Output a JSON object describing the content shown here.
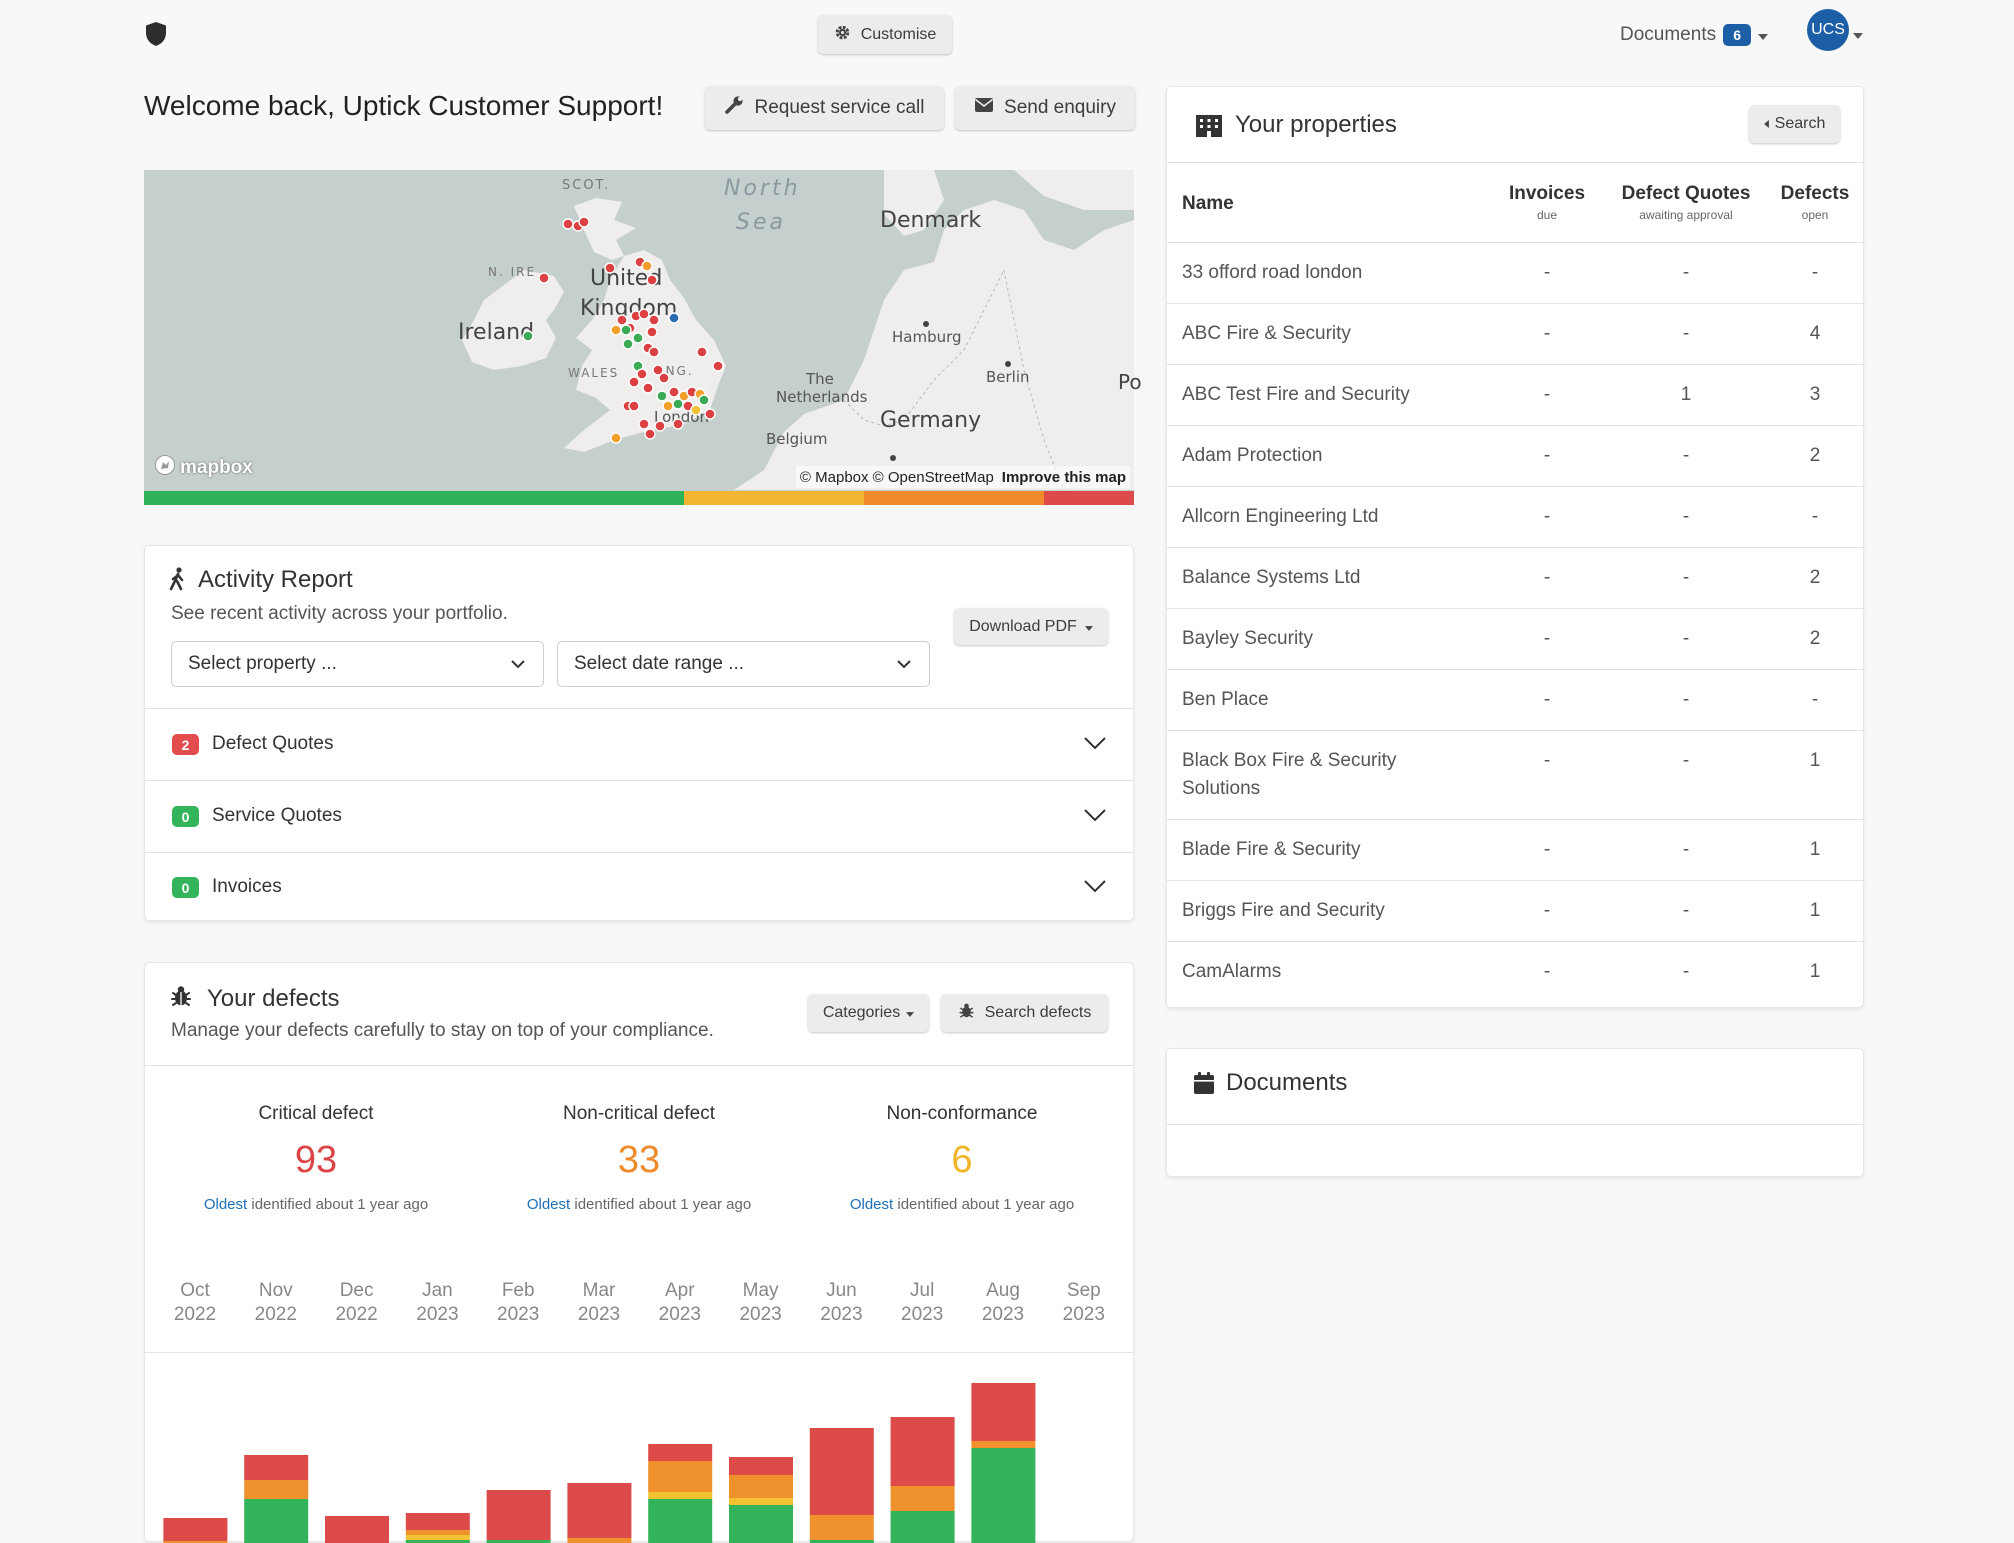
{
  "header": {
    "customise_label": "Customise",
    "documents_label": "Documents",
    "documents_count": "6",
    "avatar_initials": "UCS"
  },
  "welcome": {
    "title": "Welcome back, Uptick Customer Support!",
    "request_service_label": "Request service call",
    "send_enquiry_label": "Send enquiry"
  },
  "map": {
    "labels": {
      "scot": "SCOT.",
      "north": "North",
      "sea": "Sea",
      "denmark": "Denmark",
      "n_ire": "N. IRE",
      "united": "United",
      "kingdom": "Kingdom",
      "ireland": "Ireland",
      "hamburg": "Hamburg",
      "wales": "WALES",
      "eng": "ENG.",
      "the": "The",
      "netherlands": "Netherlands",
      "berlin": "Berlin",
      "po": "Po",
      "germany": "Germany",
      "london": "London",
      "belgium": "Belgium"
    },
    "logo": "mapbox",
    "attribution": "© Mapbox © OpenStreetMap",
    "improve_link": "Improve this map",
    "status_bar": [
      {
        "fraction": 0.545,
        "color": "#2fb35a"
      },
      {
        "fraction": 0.182,
        "color": "#f2b632"
      },
      {
        "fraction": 0.182,
        "color": "#f08a2c"
      },
      {
        "fraction": 0.091,
        "color": "#dc4a4a"
      }
    ]
  },
  "activity": {
    "title": "Activity Report",
    "subtitle": "See recent activity across your portfolio.",
    "download_label": "Download PDF",
    "property_select": "Select property ...",
    "date_select": "Select date range ...",
    "sections": [
      {
        "count": "2",
        "label": "Defect Quotes",
        "color": "#e24c4c"
      },
      {
        "count": "0",
        "label": "Service Quotes",
        "color": "#33b35a"
      },
      {
        "count": "0",
        "label": "Invoices",
        "color": "#33b35a"
      }
    ]
  },
  "defects": {
    "title": "Your defects",
    "subtitle": "Manage your defects carefully to stay on top of your compliance.",
    "categories_label": "Categories",
    "search_label": "Search defects",
    "stats": [
      {
        "label": "Critical defect",
        "value": "93",
        "color": "#dc4545",
        "oldest": "Oldest",
        "ago": "identified about 1 year ago"
      },
      {
        "label": "Non-critical defect",
        "value": "33",
        "color": "#ef8a2b",
        "oldest": "Oldest",
        "ago": "identified about 1 year ago"
      },
      {
        "label": "Non-conformance",
        "value": "6",
        "color": "#f0b429",
        "oldest": "Oldest",
        "ago": "identified about 1 year ago"
      }
    ]
  },
  "chart_data": {
    "type": "bar",
    "stacked": true,
    "categories": [
      [
        "Oct",
        "2022"
      ],
      [
        "Nov",
        "2022"
      ],
      [
        "Dec",
        "2022"
      ],
      [
        "Jan",
        "2023"
      ],
      [
        "Feb",
        "2023"
      ],
      [
        "Mar",
        "2023"
      ],
      [
        "Apr",
        "2023"
      ],
      [
        "May",
        "2023"
      ],
      [
        "Jun",
        "2023"
      ],
      [
        "Jul",
        "2023"
      ],
      [
        "Aug",
        "2023"
      ],
      [
        "Sep",
        "2023"
      ]
    ],
    "colors": {
      "green": "#33b35a",
      "yellow": "#f2c232",
      "orange": "#ef922e",
      "red": "#dc4a4a"
    },
    "series": [
      {
        "color_key": "green",
        "values": [
          0,
          44,
          0,
          3,
          3,
          0,
          44,
          38,
          3,
          32,
          95,
          0
        ]
      },
      {
        "color_key": "yellow",
        "values": [
          0,
          0,
          0,
          5,
          0,
          0,
          7,
          7,
          0,
          0,
          0,
          0
        ]
      },
      {
        "color_key": "orange",
        "values": [
          2,
          19,
          0,
          5,
          0,
          5,
          31,
          23,
          25,
          25,
          7,
          0
        ]
      },
      {
        "color_key": "red",
        "values": [
          23,
          25,
          27,
          17,
          50,
          55,
          17,
          18,
          87,
          69,
          58,
          0
        ]
      }
    ]
  },
  "properties": {
    "title": "Your properties",
    "search_label": "Search",
    "columns": {
      "name": "Name",
      "invoices": "Invoices",
      "invoices_sub": "due",
      "quotes": "Defect Quotes",
      "quotes_sub": "awaiting approval",
      "defects": "Defects",
      "defects_sub": "open"
    },
    "rows": [
      {
        "name": "33 offord road london",
        "invoices": "-",
        "quotes": "-",
        "defects": "-"
      },
      {
        "name": "ABC Fire & Security",
        "invoices": "-",
        "quotes": "-",
        "defects": "4"
      },
      {
        "name": "ABC Test Fire and Security",
        "invoices": "-",
        "quotes": "1",
        "defects": "3"
      },
      {
        "name": "Adam Protection",
        "invoices": "-",
        "quotes": "-",
        "defects": "2"
      },
      {
        "name": "Allcorn Engineering Ltd",
        "invoices": "-",
        "quotes": "-",
        "defects": "-"
      },
      {
        "name": "Balance Systems Ltd",
        "invoices": "-",
        "quotes": "-",
        "defects": "2"
      },
      {
        "name": "Bayley Security",
        "invoices": "-",
        "quotes": "-",
        "defects": "2"
      },
      {
        "name": "Ben Place",
        "invoices": "-",
        "quotes": "-",
        "defects": "-"
      },
      {
        "name": "Black Box Fire & Security Solutions",
        "invoices": "-",
        "quotes": "-",
        "defects": "1"
      },
      {
        "name": "Blade Fire & Security",
        "invoices": "-",
        "quotes": "-",
        "defects": "1"
      },
      {
        "name": "Briggs Fire and Security",
        "invoices": "-",
        "quotes": "-",
        "defects": "1"
      },
      {
        "name": "CamAlarms",
        "invoices": "-",
        "quotes": "-",
        "defects": "1"
      }
    ]
  },
  "documents_card": {
    "title": "Documents"
  }
}
